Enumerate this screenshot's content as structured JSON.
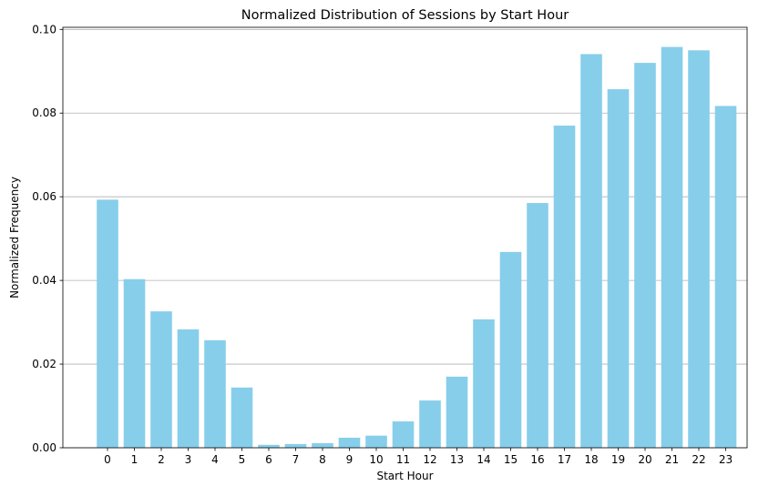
{
  "chart_data": {
    "type": "bar",
    "title": "Normalized Distribution of Sessions by Start Hour",
    "xlabel": "Start Hour",
    "ylabel": "Normalized Frequency",
    "categories": [
      "0",
      "1",
      "2",
      "3",
      "4",
      "5",
      "6",
      "7",
      "8",
      "9",
      "10",
      "11",
      "12",
      "13",
      "14",
      "15",
      "16",
      "17",
      "18",
      "19",
      "20",
      "21",
      "22",
      "23"
    ],
    "values": [
      0.0593,
      0.0403,
      0.0326,
      0.0283,
      0.0257,
      0.0144,
      0.0007,
      0.0009,
      0.0011,
      0.0024,
      0.0029,
      0.0063,
      0.0113,
      0.017,
      0.0307,
      0.0468,
      0.0585,
      0.077,
      0.0941,
      0.0857,
      0.092,
      0.0958,
      0.095,
      0.0817
    ],
    "ylim": [
      0,
      0.1005
    ],
    "yticks": [
      0.0,
      0.02,
      0.04,
      0.06,
      0.08,
      0.1
    ],
    "ytick_labels": [
      "0.00",
      "0.02",
      "0.04",
      "0.06",
      "0.08",
      "0.10"
    ],
    "grid": "y-axis",
    "bar_color": "#87CEEB",
    "grid_color": "#b0b0b0"
  }
}
